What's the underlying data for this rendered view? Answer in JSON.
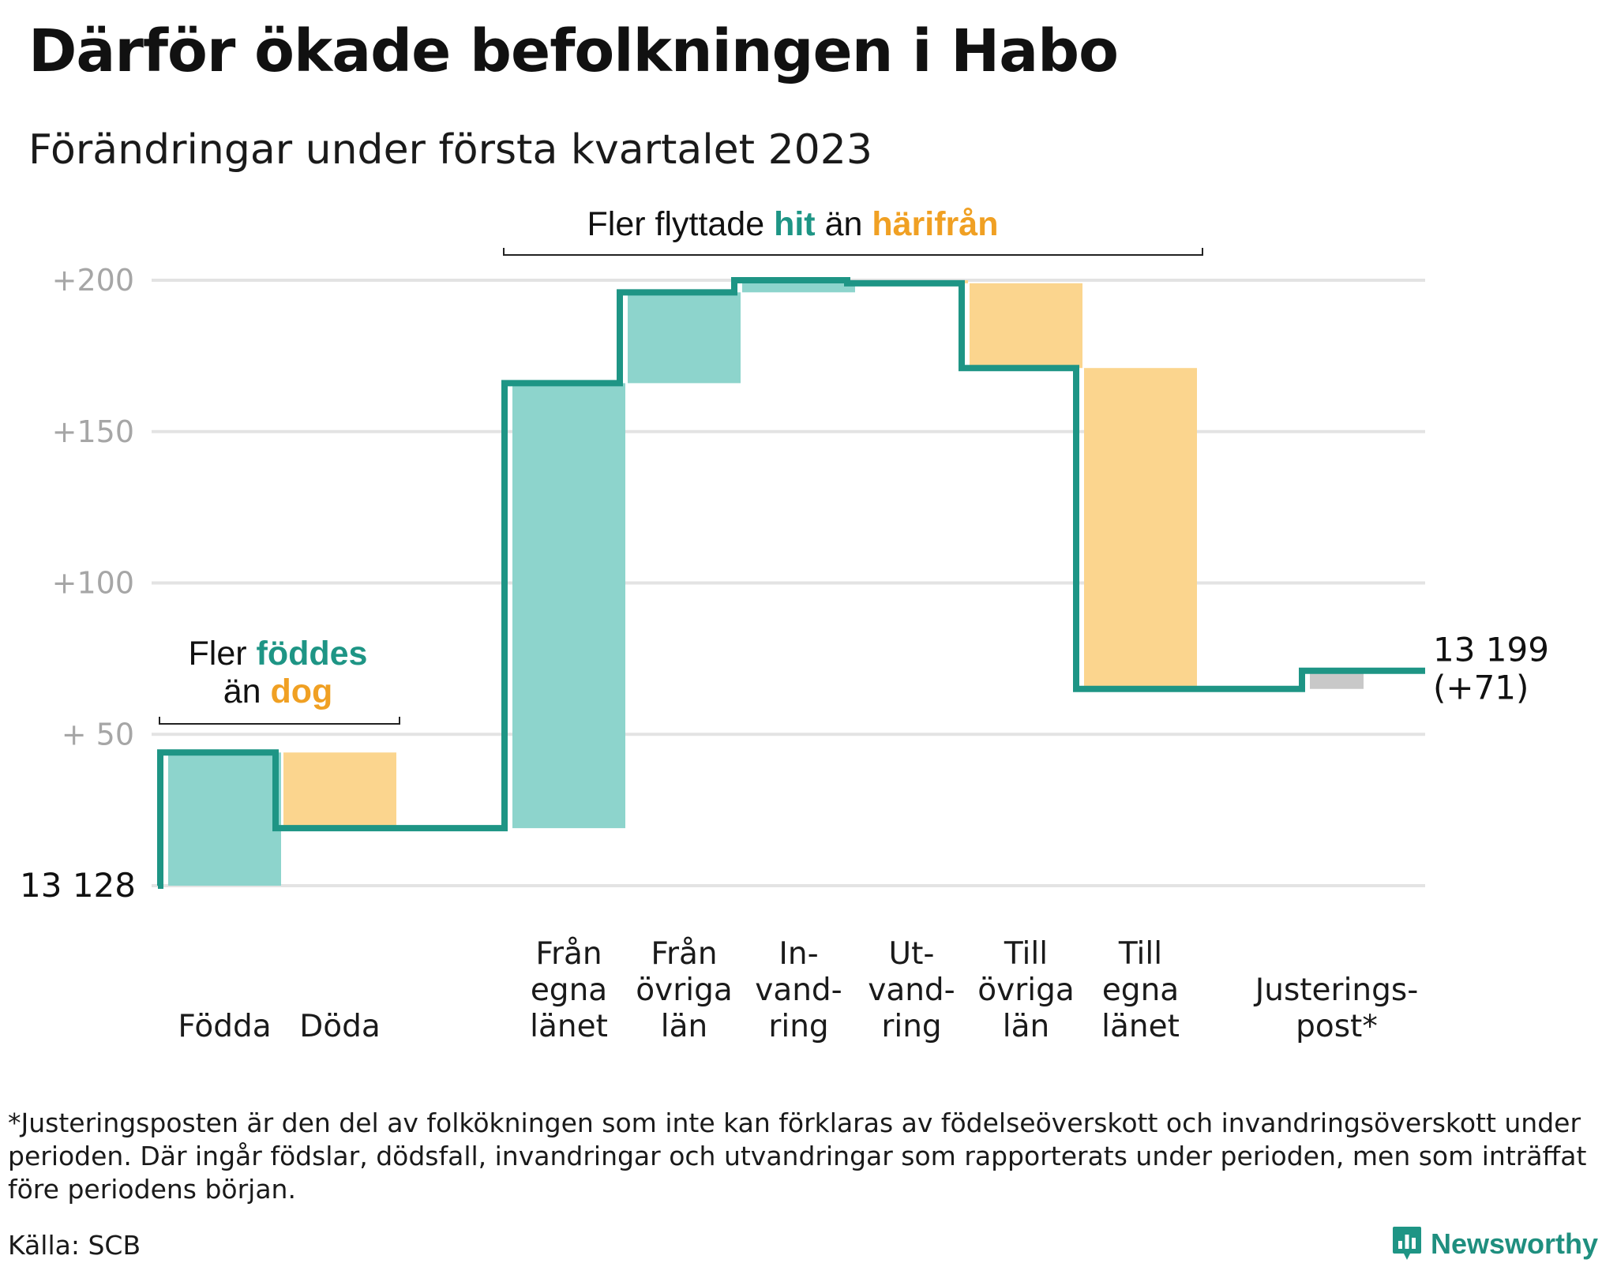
{
  "title": "Därför ökade befolkningen i Habo",
  "subtitle": "Förändringar under första kvartalet 2023",
  "colors": {
    "line": "#1e9585",
    "increase": "#8dd4cc",
    "decrease": "#fbd58e",
    "adjustment": "#c8c8c8",
    "highlight_in": "#1e9585",
    "highlight_out": "#f0a023",
    "grid": "#e3e3e3"
  },
  "annotations": {
    "births": {
      "line1_prefix": "Fler ",
      "line1_highlight": "föddes",
      "line2_prefix": "än ",
      "line2_highlight": "dog"
    },
    "moves": {
      "prefix": "Fler flyttade ",
      "highlight_in": "hit",
      "middle": " än ",
      "highlight_out": "härifrån"
    }
  },
  "footnote": "*Justeringsposten är den del av folkökningen som inte kan förklaras av födelseöverskott och invandringsöverskott under perioden. Där ingår födslar, dödsfall, invandringar och utvandringar som rapporterats under perioden, men som inträffat före periodens början.",
  "source": "Källa: SCB",
  "brand": "Newsworthy",
  "chart_data": {
    "type": "waterfall",
    "title": "Därför ökade befolkningen i Habo",
    "subtitle": "Förändringar under första kvartalet 2023",
    "start_value": 13128,
    "start_label": "13 128",
    "end_value": 13199,
    "end_label": "13 199",
    "end_change_label": "(+71)",
    "ylim": [
      0,
      200
    ],
    "yticks": [
      {
        "value": 50,
        "label": "+ 50"
      },
      {
        "value": 100,
        "label": "+100"
      },
      {
        "value": 150,
        "label": "+150"
      },
      {
        "value": 200,
        "label": "+200"
      }
    ],
    "grid": true,
    "steps": [
      {
        "label": [
          "Födda"
        ],
        "change": 44,
        "kind": "increase"
      },
      {
        "label": [
          "Döda"
        ],
        "change": -25,
        "kind": "decrease"
      },
      {
        "label": [
          "Från",
          "egna",
          "länet"
        ],
        "change": 147,
        "kind": "increase"
      },
      {
        "label": [
          "Från",
          "övriga",
          "län"
        ],
        "change": 30,
        "kind": "increase"
      },
      {
        "label": [
          "In-",
          "vand-",
          "ring"
        ],
        "change": 4,
        "kind": "increase"
      },
      {
        "label": [
          "Ut-",
          "vand-",
          "ring"
        ],
        "change": -1,
        "kind": "decrease"
      },
      {
        "label": [
          "Till",
          "övriga",
          "län"
        ],
        "change": -28,
        "kind": "decrease"
      },
      {
        "label": [
          "Till",
          "egna",
          "länet"
        ],
        "change": -106,
        "kind": "decrease"
      },
      {
        "label": [
          "Justerings-",
          "post*"
        ],
        "change": 6,
        "kind": "adjustment"
      }
    ]
  }
}
